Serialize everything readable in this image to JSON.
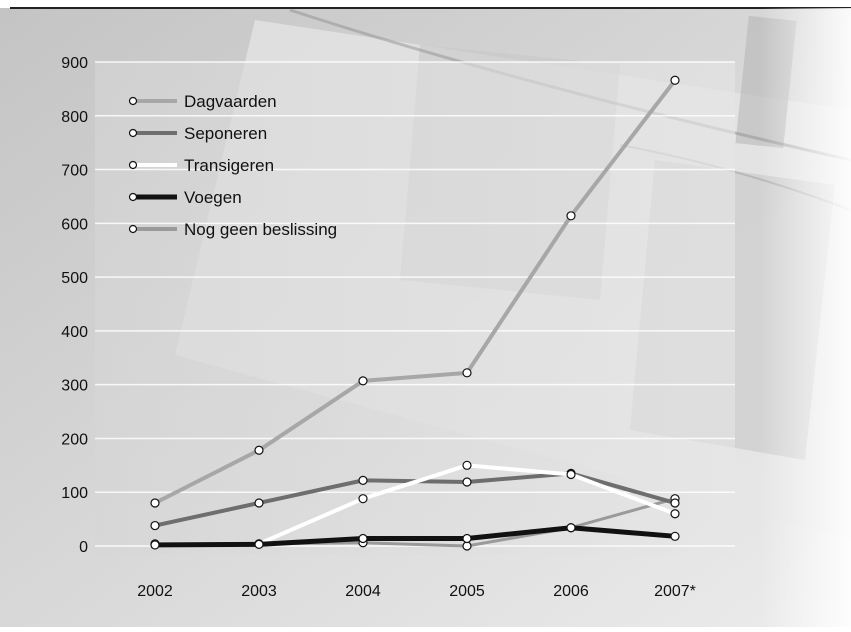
{
  "chart_data": {
    "type": "line",
    "title": "",
    "xlabel": "",
    "ylabel": "",
    "categories": [
      "2002",
      "2003",
      "2004",
      "2005",
      "2006",
      "2007*"
    ],
    "ylim": [
      0,
      900
    ],
    "yticks": [
      0,
      100,
      200,
      300,
      400,
      500,
      600,
      700,
      800,
      900
    ],
    "grid": true,
    "legend_position": "top-left",
    "series": [
      {
        "name": "Dagvaarden",
        "color": "#a7a7a7",
        "values": [
          80,
          178,
          307,
          322,
          614,
          866
        ]
      },
      {
        "name": "Seponeren",
        "color": "#6e6e6e",
        "values": [
          38,
          80,
          122,
          119,
          135,
          80
        ]
      },
      {
        "name": "Transigeren",
        "color": "#ffffff",
        "values": [
          4,
          4,
          88,
          150,
          133,
          60
        ]
      },
      {
        "name": "Voegen",
        "color": "#111111",
        "values": [
          2,
          3,
          14,
          14,
          34,
          18
        ]
      },
      {
        "name": "Nog geen beslissing",
        "color": "#9a9a9a",
        "values": [
          2,
          4,
          6,
          0,
          34,
          88
        ]
      }
    ]
  }
}
